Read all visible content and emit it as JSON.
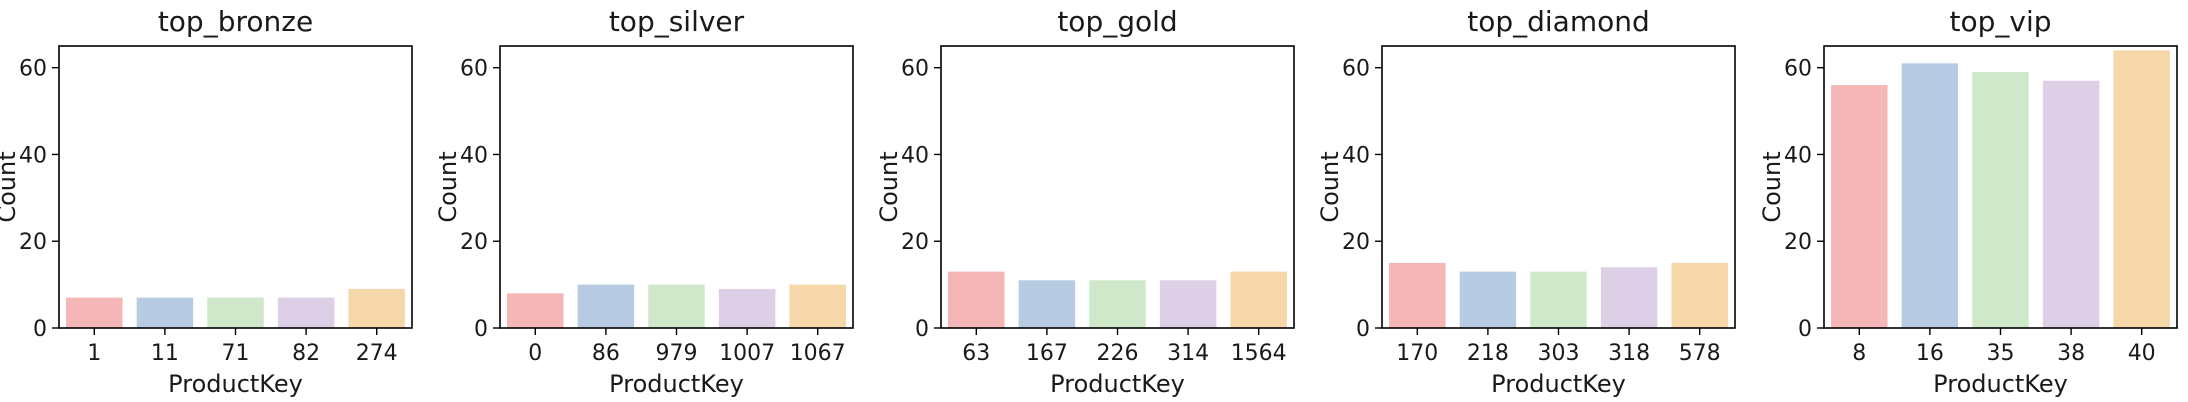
{
  "chart_data": [
    {
      "type": "bar",
      "title": "top_bronze",
      "xlabel": "ProductKey",
      "ylabel": "Count",
      "categories": [
        "1",
        "11",
        "71",
        "82",
        "274"
      ],
      "values": [
        7,
        7,
        7,
        7,
        9
      ],
      "ylim": [
        0,
        65
      ],
      "yticks": [
        "0",
        "20",
        "40",
        "60"
      ]
    },
    {
      "type": "bar",
      "title": "top_silver",
      "xlabel": "ProductKey",
      "ylabel": "Count",
      "categories": [
        "0",
        "86",
        "979",
        "1007",
        "1067"
      ],
      "values": [
        8,
        10,
        10,
        9,
        10
      ],
      "ylim": [
        0,
        65
      ],
      "yticks": [
        "0",
        "20",
        "40",
        "60"
      ]
    },
    {
      "type": "bar",
      "title": "top_gold",
      "xlabel": "ProductKey",
      "ylabel": "Count",
      "categories": [
        "63",
        "167",
        "226",
        "314",
        "1564"
      ],
      "values": [
        13,
        11,
        11,
        11,
        13
      ],
      "ylim": [
        0,
        65
      ],
      "yticks": [
        "0",
        "20",
        "40",
        "60"
      ]
    },
    {
      "type": "bar",
      "title": "top_diamond",
      "xlabel": "ProductKey",
      "ylabel": "Count",
      "categories": [
        "170",
        "218",
        "303",
        "318",
        "578"
      ],
      "values": [
        15,
        13,
        13,
        14,
        15
      ],
      "ylim": [
        0,
        65
      ],
      "yticks": [
        "0",
        "20",
        "40",
        "60"
      ]
    },
    {
      "type": "bar",
      "title": "top_vip",
      "xlabel": "ProductKey",
      "ylabel": "Count",
      "categories": [
        "8",
        "16",
        "35",
        "38",
        "40"
      ],
      "values": [
        56,
        61,
        59,
        57,
        64
      ],
      "ylim": [
        0,
        65
      ],
      "yticks": [
        "0",
        "20",
        "40",
        "60"
      ]
    }
  ],
  "palette": [
    "#f4b6b6",
    "#b7cce2",
    "#d0e8ca",
    "#dccfe6",
    "#f6d7a9"
  ],
  "grid": false,
  "legend": "none"
}
